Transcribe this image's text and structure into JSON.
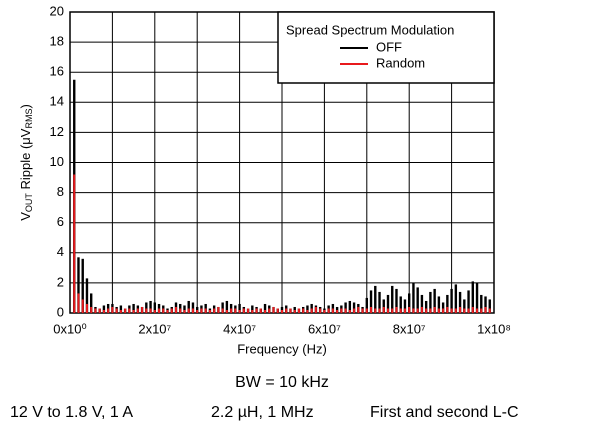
{
  "chart_data": {
    "type": "spike",
    "ylabel": {
      "parts": [
        "V",
        "OUT",
        " Ripple (μV",
        "RMS",
        ")"
      ]
    },
    "xlabel": "Frequency (Hz)",
    "legend": {
      "title": "Spread Spectrum Modulation",
      "corner": "top-right"
    },
    "xlim": [
      0,
      100000000
    ],
    "ylim": [
      0,
      20
    ],
    "xticks": [
      {
        "value": 0,
        "label": "0x10⁰"
      },
      {
        "value": 20000000,
        "label": "2x10⁷"
      },
      {
        "value": 40000000,
        "label": "4x10⁷"
      },
      {
        "value": 60000000,
        "label": "6x10⁷"
      },
      {
        "value": 80000000,
        "label": "8x10⁷"
      },
      {
        "value": 100000000,
        "label": "1x10⁸"
      }
    ],
    "xminor": [
      10000000,
      30000000,
      50000000,
      70000000,
      90000000
    ],
    "yticks": [
      0,
      2,
      4,
      6,
      8,
      10,
      12,
      14,
      16,
      18,
      20
    ],
    "grid": true,
    "x": [
      1000000,
      2000000,
      3000000,
      4000000,
      5000000,
      6000000,
      7000000,
      8000000,
      9000000,
      10000000,
      11000000,
      12000000,
      13000000,
      14000000,
      15000000,
      16000000,
      17000000,
      18000000,
      19000000,
      20000000,
      21000000,
      22000000,
      23000000,
      24000000,
      25000000,
      26000000,
      27000000,
      28000000,
      29000000,
      30000000,
      31000000,
      32000000,
      33000000,
      34000000,
      35000000,
      36000000,
      37000000,
      38000000,
      39000000,
      40000000,
      41000000,
      42000000,
      43000000,
      44000000,
      45000000,
      46000000,
      47000000,
      48000000,
      49000000,
      50000000,
      51000000,
      52000000,
      53000000,
      54000000,
      55000000,
      56000000,
      57000000,
      58000000,
      59000000,
      60000000,
      61000000,
      62000000,
      63000000,
      64000000,
      65000000,
      66000000,
      67000000,
      68000000,
      69000000,
      70000000,
      71000000,
      72000000,
      73000000,
      74000000,
      75000000,
      76000000,
      77000000,
      78000000,
      79000000,
      80000000,
      81000000,
      82000000,
      83000000,
      84000000,
      85000000,
      86000000,
      87000000,
      88000000,
      89000000,
      90000000,
      91000000,
      92000000,
      93000000,
      94000000,
      95000000,
      96000000,
      97000000,
      98000000,
      99000000
    ],
    "series": [
      {
        "name": "OFF",
        "color": "#000000",
        "values": [
          15.5,
          3.7,
          3.6,
          2.3,
          1.3,
          0.4,
          0.3,
          0.5,
          0.6,
          0.6,
          0.4,
          0.5,
          0.3,
          0.5,
          0.6,
          0.5,
          0.4,
          0.7,
          0.8,
          0.7,
          0.6,
          0.5,
          0.3,
          0.4,
          0.7,
          0.6,
          0.5,
          0.8,
          0.7,
          0.4,
          0.5,
          0.6,
          0.3,
          0.5,
          0.4,
          0.7,
          0.8,
          0.6,
          0.5,
          0.6,
          0.4,
          0.3,
          0.5,
          0.4,
          0.3,
          0.6,
          0.5,
          0.4,
          0.3,
          0.4,
          0.5,
          0.3,
          0.4,
          0.3,
          0.4,
          0.5,
          0.6,
          0.5,
          0.4,
          0.3,
          0.5,
          0.6,
          0.4,
          0.5,
          0.7,
          0.8,
          0.7,
          0.6,
          0.4,
          1.0,
          1.5,
          1.8,
          1.4,
          0.9,
          1.2,
          1.8,
          1.6,
          1.1,
          0.9,
          1.3,
          2.0,
          1.7,
          1.2,
          0.8,
          1.4,
          1.6,
          1.1,
          0.7,
          1.2,
          1.6,
          1.9,
          1.4,
          0.9,
          1.5,
          2.1,
          2.0,
          1.2,
          1.1,
          0.9
        ]
      },
      {
        "name": "Random",
        "color": "#e8191c",
        "values": [
          9.2,
          1.3,
          0.9,
          0.6,
          0.4,
          0.3,
          0.3,
          0.2,
          0.3,
          0.4,
          0.3,
          0.2,
          0.3,
          0.3,
          0.2,
          0.3,
          0.4,
          0.3,
          0.3,
          0.2,
          0.3,
          0.3,
          0.2,
          0.3,
          0.4,
          0.3,
          0.2,
          0.3,
          0.3,
          0.2,
          0.3,
          0.3,
          0.2,
          0.3,
          0.4,
          0.3,
          0.2,
          0.3,
          0.3,
          0.2,
          0.3,
          0.3,
          0.2,
          0.3,
          0.3,
          0.2,
          0.3,
          0.4,
          0.3,
          0.2,
          0.3,
          0.3,
          0.2,
          0.3,
          0.3,
          0.2,
          0.3,
          0.4,
          0.3,
          0.2,
          0.3,
          0.3,
          0.2,
          0.3,
          0.3,
          0.2,
          0.3,
          0.4,
          0.3,
          0.3,
          0.4,
          0.3,
          0.3,
          0.4,
          0.3,
          0.3,
          0.4,
          0.3,
          0.3,
          0.4,
          0.3,
          0.3,
          0.4,
          0.3,
          0.3,
          0.4,
          0.3,
          0.3,
          0.4,
          0.3,
          0.3,
          0.4,
          0.3,
          0.3,
          0.4,
          0.3,
          0.3,
          0.4,
          0.3
        ]
      }
    ]
  },
  "footer": {
    "bandwidth": "BW = 10 kHz",
    "conditions": [
      "12 V to 1.8 V, 1 A",
      "2.2 µH, 1 MHz",
      "First and second L-C"
    ]
  }
}
